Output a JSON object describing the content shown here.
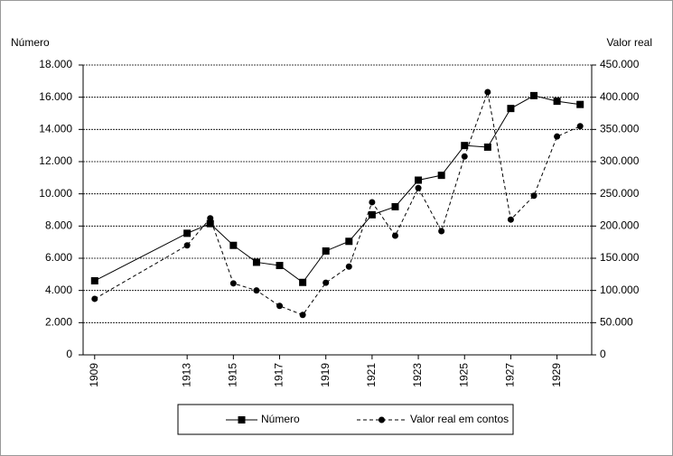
{
  "chart_data": {
    "type": "line",
    "y_label": "Número",
    "y2_label": "Valor real",
    "x": [
      1909,
      1913,
      1914,
      1915,
      1916,
      1917,
      1918,
      1919,
      1920,
      1921,
      1922,
      1923,
      1924,
      1925,
      1926,
      1927,
      1928,
      1929,
      1930
    ],
    "xlim": [
      1908.5,
      1930.5
    ],
    "xticks": [
      1909,
      1913,
      1915,
      1917,
      1919,
      1921,
      1923,
      1925,
      1927,
      1929
    ],
    "ylim": [
      0,
      18000
    ],
    "yticks": [
      0,
      {
        "value": 2000,
        "label": "2.000"
      },
      {
        "value": 4000,
        "label": "4.000"
      },
      {
        "value": 6000,
        "label": "6.000"
      },
      {
        "value": 8000,
        "label": "8.000"
      },
      {
        "value": 10000,
        "label": "10.000"
      },
      {
        "value": 12000,
        "label": "12.000"
      },
      {
        "value": 14000,
        "label": "14.000"
      },
      {
        "value": 16000,
        "label": "16.000"
      },
      {
        "value": 18000,
        "label": "18.000"
      }
    ],
    "y2lim": [
      0,
      450000
    ],
    "y2ticks": [
      0,
      {
        "value": 50000,
        "label": "50.000"
      },
      {
        "value": 100000,
        "label": "100.000"
      },
      {
        "value": 150000,
        "label": "150.000"
      },
      {
        "value": 200000,
        "label": "200.000"
      },
      {
        "value": 250000,
        "label": "250.000"
      },
      {
        "value": 300000,
        "label": "300.000"
      },
      {
        "value": 350000,
        "label": "350.000"
      },
      {
        "value": 400000,
        "label": "400.000"
      },
      {
        "value": 450000,
        "label": "450.000"
      }
    ],
    "grid": true,
    "legend": "bottom",
    "series": [
      {
        "name": "Número",
        "color": "#000000",
        "line_style": "solid",
        "marker": "square",
        "values": [
          4600,
          7550,
          8150,
          6800,
          5750,
          5550,
          4500,
          6450,
          7050,
          8700,
          9200,
          10850,
          11150,
          13000,
          12900,
          15300,
          16100,
          15750,
          15550
        ]
      },
      {
        "name": "Valor real em contos",
        "color": "#000000",
        "line_style": "dashed",
        "marker": "circle",
        "axis": "y2",
        "values": [
          87000,
          170000,
          212000,
          111000,
          100000,
          76000,
          62000,
          112000,
          137000,
          237000,
          185000,
          259000,
          192000,
          308000,
          408000,
          210000,
          247000,
          339000,
          355000
        ]
      }
    ]
  }
}
